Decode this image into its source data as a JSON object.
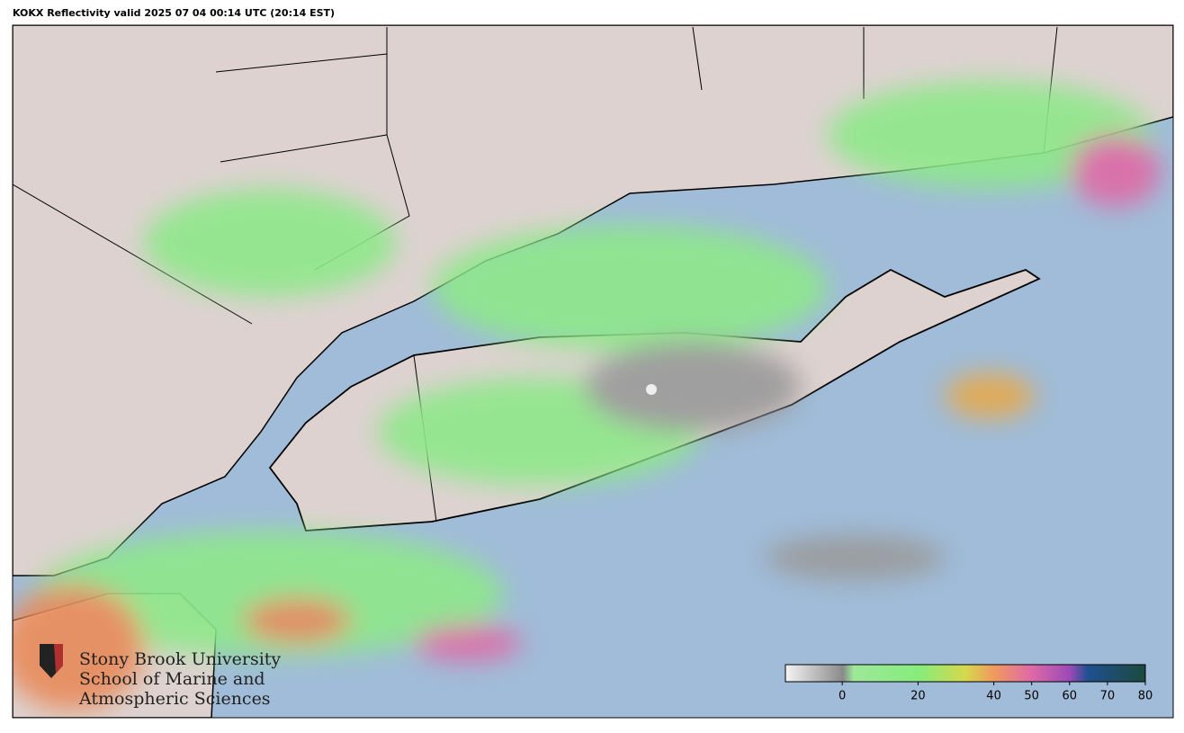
{
  "title": "KOKX Reflectivity valid 2025 07 04 00:14 UTC (20:14 EST)",
  "logo": {
    "lines": [
      "Stony Brook University",
      "School of Marine and",
      "Atmospheric Sciences"
    ]
  },
  "colorbar": {
    "lim": [
      -15,
      80
    ],
    "ticks": [
      0,
      20,
      40,
      50,
      60,
      70,
      80
    ]
  }
}
